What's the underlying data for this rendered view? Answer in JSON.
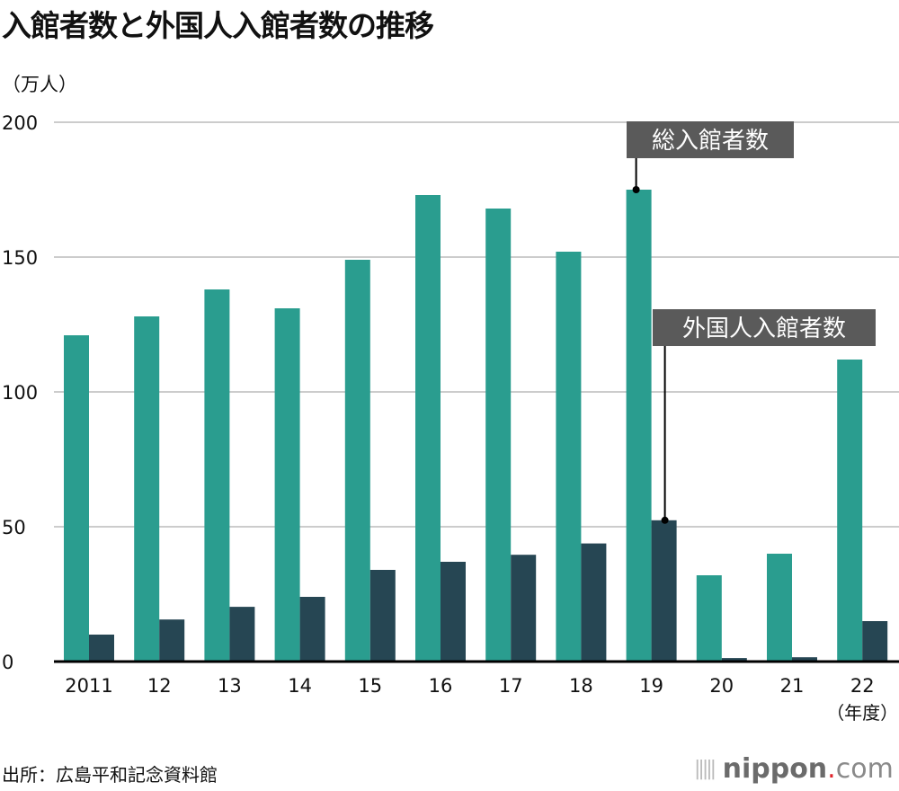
{
  "title": "入館者数と外国人入館者数の推移",
  "source": "出所：広島平和記念資料館",
  "logo": {
    "name": "nippon",
    "dot": ".",
    "suffix": "com"
  },
  "chart_data": {
    "type": "bar",
    "title": "入館者数と外国人入館者数の推移",
    "ylabel": "（万人）",
    "xlabel_suffix": "（年度）",
    "ylim": [
      0,
      200
    ],
    "yticks": [
      0,
      50,
      100,
      150,
      200
    ],
    "grid": true,
    "categories": [
      "2011",
      "12",
      "13",
      "14",
      "15",
      "16",
      "17",
      "18",
      "19",
      "20",
      "21",
      "22"
    ],
    "series": [
      {
        "name": "総入館者数",
        "color": "#2a9d8f",
        "values": [
          121,
          128,
          138,
          131,
          149,
          173,
          168,
          152,
          175,
          32,
          40,
          112
        ]
      },
      {
        "name": "外国人入館者数",
        "color": "#264653",
        "values": [
          10,
          15.6,
          20.3,
          24,
          34,
          37,
          39.6,
          43.8,
          52.4,
          1.3,
          1.6,
          15
        ]
      }
    ],
    "annotations": [
      {
        "series": "総入館者数",
        "category": "19"
      },
      {
        "series": "外国人入館者数",
        "category": "19"
      }
    ]
  }
}
